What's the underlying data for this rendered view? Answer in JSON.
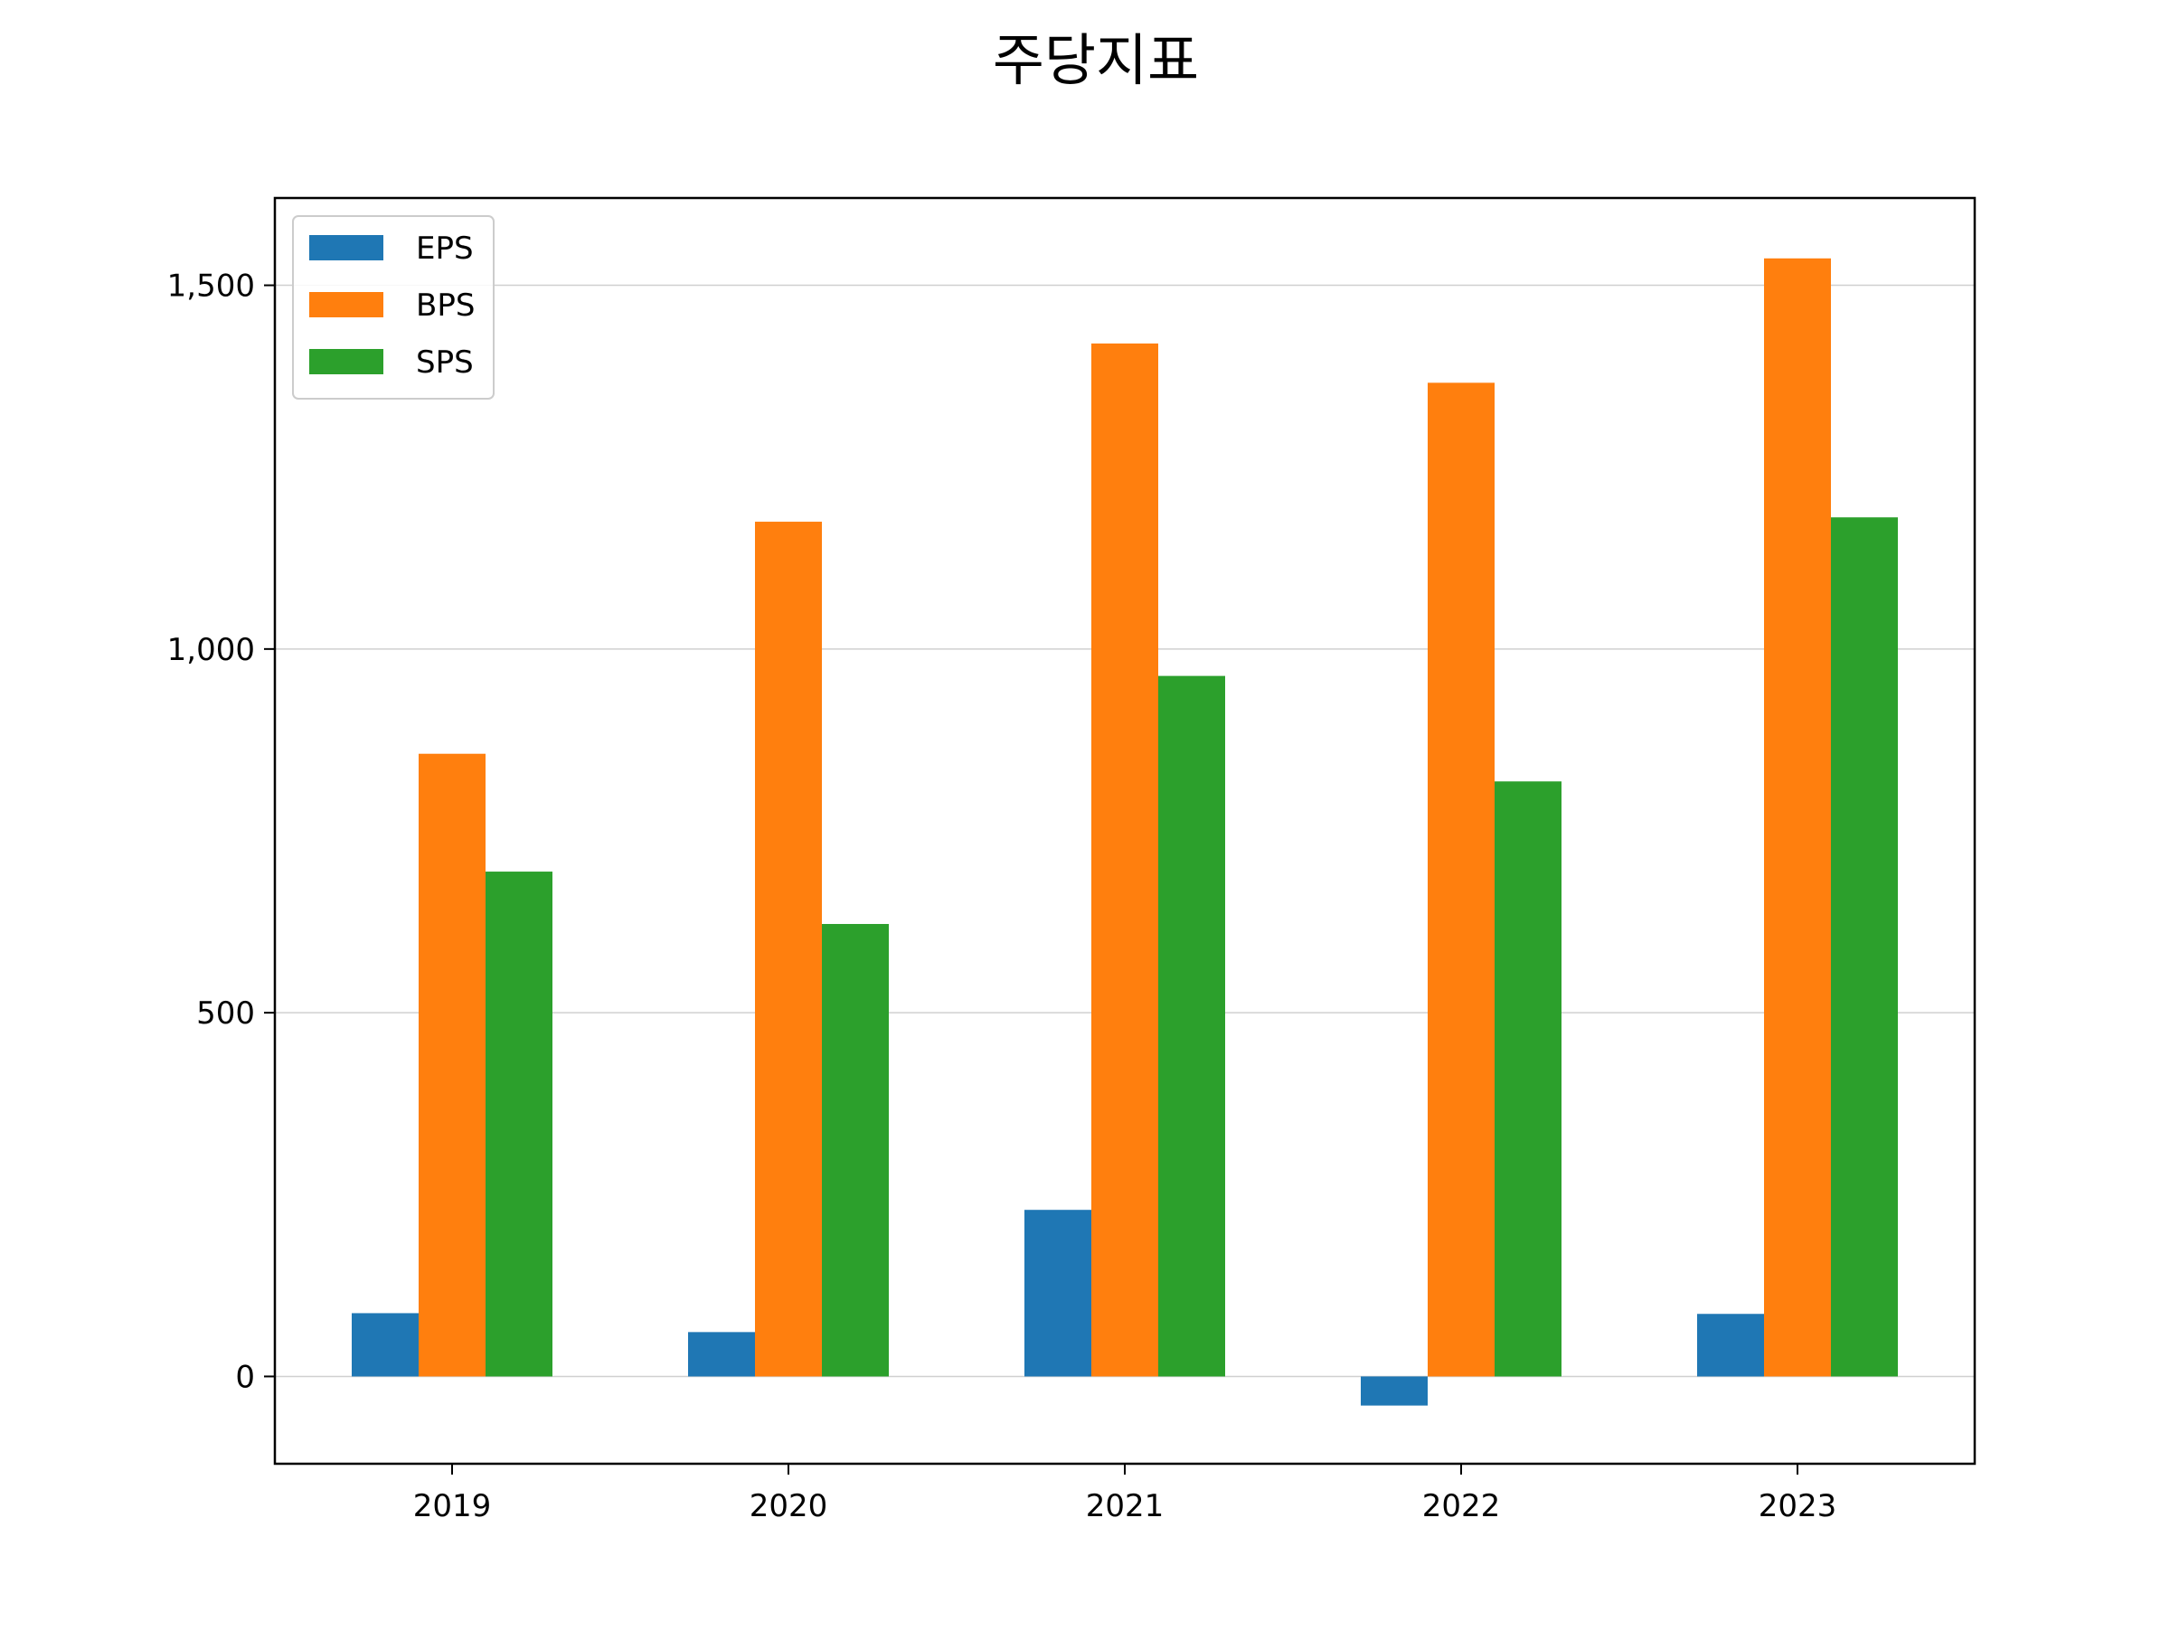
{
  "chart_data": {
    "type": "bar",
    "title": "주당지표",
    "xlabel": "",
    "ylabel": "",
    "categories": [
      "2019",
      "2020",
      "2021",
      "2022",
      "2023"
    ],
    "series": [
      {
        "name": "EPS",
        "color": "#1f77b4",
        "values": [
          87,
          61,
          229,
          -40,
          86
        ]
      },
      {
        "name": "BPS",
        "color": "#ff7f0e",
        "values": [
          856,
          1175,
          1420,
          1366,
          1537
        ]
      },
      {
        "name": "SPS",
        "color": "#2ca02c",
        "values": [
          694,
          622,
          963,
          818,
          1181
        ]
      }
    ],
    "ylim": [
      -120,
      1620
    ],
    "yticks": [
      0,
      500,
      1000,
      1500
    ],
    "ytick_labels": [
      "0",
      "500",
      "1,000",
      "1,500"
    ],
    "grid": "horizontal",
    "legend_position": "upper-left"
  }
}
